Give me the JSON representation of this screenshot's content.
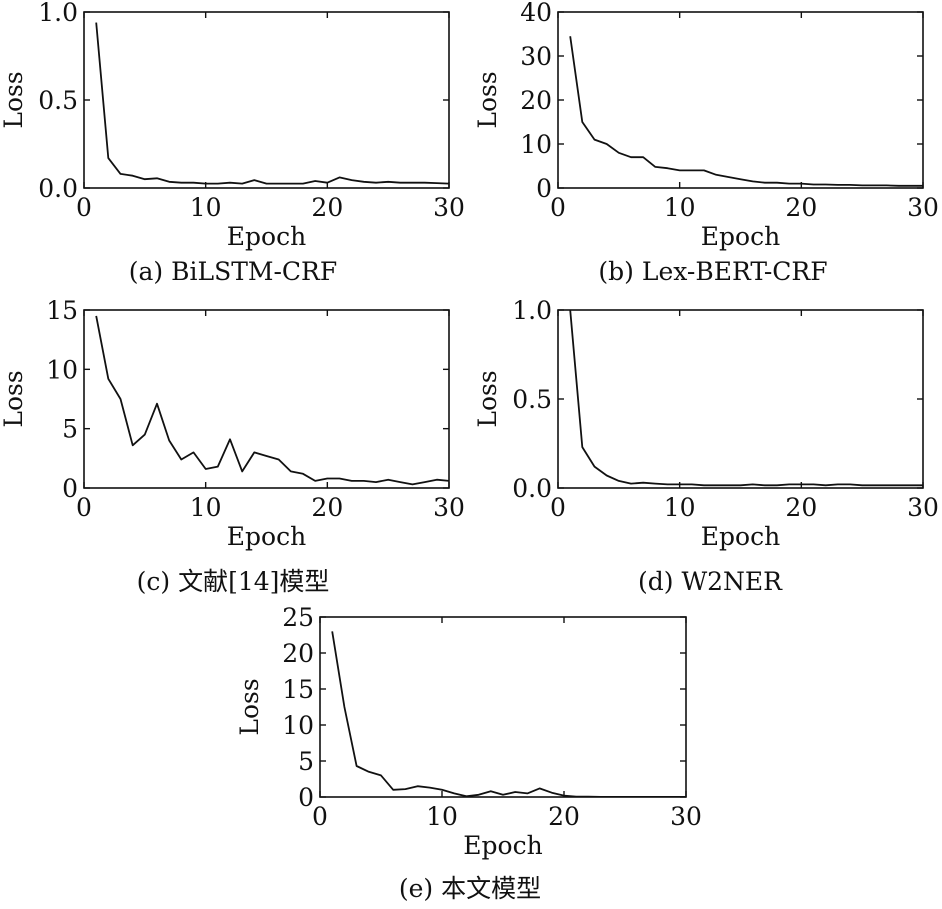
{
  "chart_data": [
    {
      "type": "line",
      "caption": "(a) BiLSTM-CRF",
      "xlabel": "Epoch",
      "ylabel": "Loss",
      "xlim": [
        0,
        30
      ],
      "ylim": [
        0,
        1.0
      ],
      "xticks": [
        "0",
        "10",
        "20",
        "30"
      ],
      "yticks": [
        "0.0",
        "0.5",
        "1.0"
      ],
      "grid": false,
      "series": [
        {
          "x": [
            1,
            2,
            3,
            4,
            5,
            6,
            7,
            8,
            9,
            10,
            11,
            12,
            13,
            14,
            15,
            16,
            17,
            18,
            19,
            20,
            21,
            22,
            23,
            24,
            25,
            26,
            27,
            28,
            29,
            30
          ],
          "y": [
            0.94,
            0.17,
            0.08,
            0.07,
            0.05,
            0.055,
            0.035,
            0.03,
            0.03,
            0.025,
            0.025,
            0.03,
            0.025,
            0.045,
            0.025,
            0.025,
            0.025,
            0.025,
            0.04,
            0.03,
            0.06,
            0.045,
            0.035,
            0.03,
            0.035,
            0.03,
            0.03,
            0.03,
            0.028,
            0.025
          ]
        }
      ]
    },
    {
      "type": "line",
      "caption": "(b) Lex-BERT-CRF",
      "xlabel": "Epoch",
      "ylabel": "Loss",
      "xlim": [
        0,
        30
      ],
      "ylim": [
        0,
        40
      ],
      "xticks": [
        "0",
        "10",
        "20",
        "30"
      ],
      "yticks": [
        "0",
        "10",
        "20",
        "30",
        "40"
      ],
      "grid": false,
      "series": [
        {
          "x": [
            1,
            2,
            3,
            4,
            5,
            6,
            7,
            8,
            9,
            10,
            11,
            12,
            13,
            14,
            15,
            16,
            17,
            18,
            19,
            20,
            21,
            22,
            23,
            24,
            25,
            26,
            27,
            28,
            29,
            30
          ],
          "y": [
            34.5,
            15,
            11,
            10,
            8,
            7,
            7,
            4.8,
            4.5,
            4,
            4,
            4,
            3,
            2.5,
            2,
            1.5,
            1.2,
            1.2,
            1,
            1,
            0.8,
            0.8,
            0.7,
            0.7,
            0.6,
            0.6,
            0.6,
            0.5,
            0.5,
            0.5
          ]
        }
      ]
    },
    {
      "type": "line",
      "caption": "(c) 文献[14]模型",
      "xlabel": "Epoch",
      "ylabel": "Loss",
      "xlim": [
        0,
        30
      ],
      "ylim": [
        0,
        15
      ],
      "xticks": [
        "0",
        "10",
        "20",
        "30"
      ],
      "yticks": [
        "0",
        "5",
        "10",
        "15"
      ],
      "grid": false,
      "series": [
        {
          "x": [
            1,
            2,
            3,
            4,
            5,
            6,
            7,
            8,
            9,
            10,
            11,
            12,
            13,
            14,
            15,
            16,
            17,
            18,
            19,
            20,
            21,
            22,
            23,
            24,
            25,
            26,
            27,
            28,
            29,
            30
          ],
          "y": [
            14.5,
            9.2,
            7.5,
            3.6,
            4.5,
            7.1,
            4,
            2.4,
            3,
            1.6,
            1.8,
            4.1,
            1.4,
            3,
            2.7,
            2.4,
            1.4,
            1.2,
            0.6,
            0.8,
            0.8,
            0.6,
            0.6,
            0.5,
            0.7,
            0.5,
            0.3,
            0.5,
            0.7,
            0.6
          ]
        }
      ]
    },
    {
      "type": "line",
      "caption": "(d) W2NER",
      "xlabel": "Epoch",
      "ylabel": "Loss",
      "xlim": [
        0,
        30
      ],
      "ylim": [
        0,
        1.0
      ],
      "xticks": [
        "0",
        "10",
        "20",
        "30"
      ],
      "yticks": [
        "0.0",
        "0.5",
        "1.0"
      ],
      "grid": false,
      "series": [
        {
          "x": [
            1,
            2,
            3,
            4,
            5,
            6,
            7,
            8,
            9,
            10,
            11,
            12,
            13,
            14,
            15,
            16,
            17,
            18,
            19,
            20,
            21,
            22,
            23,
            24,
            25,
            26,
            27,
            28,
            29,
            30
          ],
          "y": [
            1.0,
            0.23,
            0.12,
            0.07,
            0.04,
            0.025,
            0.03,
            0.025,
            0.02,
            0.02,
            0.02,
            0.015,
            0.015,
            0.015,
            0.015,
            0.02,
            0.015,
            0.015,
            0.02,
            0.02,
            0.02,
            0.015,
            0.02,
            0.02,
            0.015,
            0.015,
            0.015,
            0.015,
            0.015,
            0.015
          ]
        }
      ]
    },
    {
      "type": "line",
      "caption": "(e) 本文模型",
      "xlabel": "Epoch",
      "ylabel": "Loss",
      "xlim": [
        0,
        30
      ],
      "ylim": [
        0,
        25
      ],
      "xticks": [
        "0",
        "10",
        "20",
        "30"
      ],
      "yticks": [
        "0",
        "5",
        "10",
        "15",
        "20",
        "25"
      ],
      "grid": false,
      "series": [
        {
          "x": [
            1,
            2,
            3,
            4,
            5,
            6,
            7,
            8,
            9,
            10,
            11,
            12,
            13,
            14,
            15,
            16,
            17,
            18,
            19,
            20,
            21,
            22,
            23,
            24,
            25,
            26,
            27,
            28,
            29,
            30
          ],
          "y": [
            23,
            12.5,
            4.3,
            3.5,
            3,
            1,
            1.1,
            1.5,
            1.3,
            1,
            0.5,
            0.1,
            0.3,
            0.8,
            0.3,
            0.7,
            0.5,
            1.2,
            0.6,
            0.2,
            0.05,
            0.05,
            0.02,
            0.02,
            0.02,
            0.02,
            0.01,
            0.01,
            0.01,
            0.01
          ]
        }
      ]
    }
  ]
}
